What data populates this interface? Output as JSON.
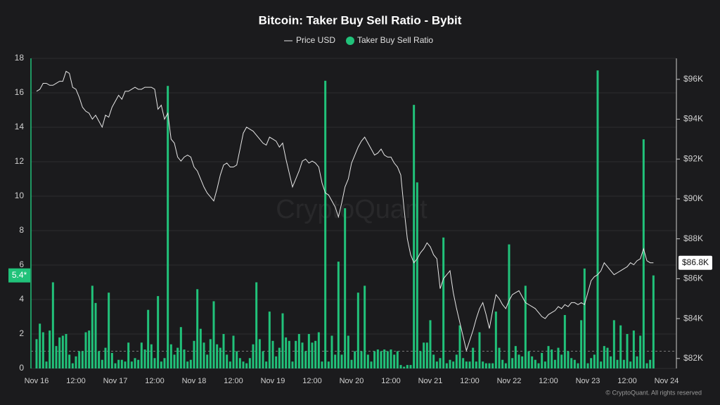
{
  "chart_data": {
    "type": "bar_line",
    "title": "Bitcoin: Taker Buy Sell Ratio - Bybit",
    "watermark": "CryptoQuant",
    "footer": "© CryptoQuant. All rights reserved",
    "legend_position": "top",
    "grid": true,
    "reference_line": 1,
    "ylim": [
      0,
      18
    ],
    "yticks": [
      0,
      2,
      4,
      6,
      8,
      10,
      12,
      14,
      16,
      18
    ],
    "y2lim": [
      81500,
      97050
    ],
    "y2ticks": [
      {
        "value": 82000,
        "label": "$82K"
      },
      {
        "value": 84000,
        "label": "$84K"
      },
      {
        "value": 86000,
        "label": "$86K"
      },
      {
        "value": 88000,
        "label": "$88K"
      },
      {
        "value": 90000,
        "label": "$90K"
      },
      {
        "value": 92000,
        "label": "$92K"
      },
      {
        "value": 94000,
        "label": "$94K"
      },
      {
        "value": 96000,
        "label": "$96K"
      }
    ],
    "categories": [
      "Nov 16",
      null,
      null,
      null,
      null,
      null,
      null,
      null,
      null,
      null,
      null,
      null,
      "12:00",
      null,
      null,
      null,
      null,
      null,
      null,
      null,
      null,
      null,
      null,
      null,
      "Nov 17",
      null,
      null,
      null,
      null,
      null,
      null,
      null,
      null,
      null,
      null,
      null,
      "12:00",
      null,
      null,
      null,
      null,
      null,
      null,
      null,
      null,
      null,
      null,
      null,
      "Nov 18",
      null,
      null,
      null,
      null,
      null,
      null,
      null,
      null,
      null,
      null,
      null,
      "12:00",
      null,
      null,
      null,
      null,
      null,
      null,
      null,
      null,
      null,
      null,
      null,
      "Nov 19",
      null,
      null,
      null,
      null,
      null,
      null,
      null,
      null,
      null,
      null,
      null,
      "12:00",
      null,
      null,
      null,
      null,
      null,
      null,
      null,
      null,
      null,
      null,
      null,
      "Nov 20",
      null,
      null,
      null,
      null,
      null,
      null,
      null,
      null,
      null,
      null,
      null,
      "12:00",
      null,
      null,
      null,
      null,
      null,
      null,
      null,
      null,
      null,
      null,
      null,
      "Nov 21",
      null,
      null,
      null,
      null,
      null,
      null,
      null,
      null,
      null,
      null,
      null,
      "12:00",
      null,
      null,
      null,
      null,
      null,
      null,
      null,
      null,
      null,
      null,
      null,
      "Nov 22",
      null,
      null,
      null,
      null,
      null,
      null,
      null,
      null,
      null,
      null,
      null,
      "12:00",
      null,
      null,
      null,
      null,
      null,
      null,
      null,
      null,
      null,
      null,
      null,
      "Nov 23",
      null,
      null,
      null,
      null,
      null,
      null,
      null,
      null,
      null,
      null,
      null,
      "12:00",
      null,
      null,
      null,
      null,
      null,
      null,
      null,
      null,
      null,
      null,
      null,
      "Nov 24"
    ],
    "series": [
      {
        "name": "Taker Buy Sell Ratio",
        "color": "#21c27a",
        "kind": "bar",
        "axis": "y",
        "values": [
          1.7,
          2.6,
          2.1,
          0.4,
          2.2,
          5.0,
          1.3,
          1.8,
          1.9,
          2.0,
          0.8,
          0.3,
          0.7,
          1.0,
          1.0,
          2.1,
          2.2,
          4.8,
          3.8,
          1.0,
          0.5,
          1.2,
          4.4,
          0.9,
          0.3,
          0.5,
          0.5,
          0.4,
          1.5,
          0.4,
          0.6,
          0.5,
          1.5,
          1.1,
          3.4,
          1.4,
          0.6,
          4.2,
          0.4,
          0.6,
          16.4,
          1.4,
          0.8,
          1.2,
          2.4,
          1.1,
          0.4,
          0.5,
          1.6,
          4.6,
          2.3,
          1.5,
          0.8,
          1.7,
          3.9,
          1.4,
          1.2,
          2.0,
          0.8,
          0.4,
          1.9,
          1.0,
          0.6,
          0.4,
          0.3,
          0.6,
          1.4,
          5.0,
          1.7,
          1.0,
          0.4,
          3.3,
          1.6,
          0.7,
          1.2,
          3.2,
          1.8,
          1.6,
          0.4,
          1.6,
          2.0,
          1.5,
          1.0,
          2.0,
          1.5,
          1.6,
          2.1,
          0.4,
          16.7,
          0.4,
          1.9,
          0.8,
          6.2,
          0.8,
          9.3,
          1.9,
          0.5,
          1.0,
          4.4,
          1.0,
          4.8,
          0.8,
          0.4,
          1.0,
          1.1,
          1.0,
          1.1,
          1.0,
          1.1,
          0.8,
          1.0,
          0.2,
          0.1,
          0.2,
          0.2,
          15.3,
          10.8,
          1.0,
          1.5,
          1.5,
          2.8,
          0.8,
          0.4,
          0.6,
          7.6,
          0.3,
          0.5,
          0.4,
          0.8,
          2.5,
          0.6,
          0.4,
          0.4,
          1.2,
          0.4,
          2.1,
          0.4,
          0.3,
          0.3,
          0.3,
          3.3,
          1.2,
          0.5,
          0.3,
          7.2,
          0.6,
          1.3,
          0.8,
          0.7,
          4.8,
          1.0,
          0.7,
          0.5,
          0.3,
          0.9,
          0.4,
          1.3,
          1.1,
          0.5,
          1.2,
          0.8,
          3.1,
          1.0,
          0.6,
          0.5,
          0.3,
          2.8,
          5.8,
          0.3,
          0.6,
          0.8,
          17.3,
          0.4,
          1.3,
          1.2,
          0.7,
          2.8,
          0.5,
          2.5,
          0.5,
          2.0,
          0.4,
          2.2,
          0.7,
          1.9,
          13.3,
          0.3,
          0.5,
          5.4,
          null,
          null,
          null,
          null
        ]
      },
      {
        "name": "Price USD",
        "color": "#e6e6e6",
        "kind": "line",
        "axis": "y2",
        "values": [
          95400,
          95500,
          95800,
          95800,
          95700,
          95700,
          95800,
          95900,
          95900,
          96400,
          96300,
          95600,
          95500,
          95100,
          94600,
          94400,
          94300,
          94000,
          94200,
          93900,
          93600,
          94200,
          94100,
          94600,
          94900,
          95200,
          95000,
          95400,
          95400,
          95500,
          95600,
          95500,
          95500,
          95600,
          95600,
          95600,
          95500,
          94500,
          94700,
          94000,
          94300,
          93000,
          92800,
          92100,
          91900,
          92100,
          92200,
          92100,
          91600,
          91400,
          91000,
          90600,
          90300,
          90100,
          89900,
          90500,
          91200,
          91700,
          91800,
          91600,
          91600,
          91700,
          92500,
          93300,
          93600,
          93500,
          93400,
          93200,
          93000,
          92800,
          92700,
          93100,
          93000,
          92900,
          92600,
          92800,
          92000,
          91300,
          90600,
          91000,
          91400,
          91900,
          92000,
          91800,
          91900,
          91800,
          91600,
          90800,
          90300,
          90200,
          89900,
          89600,
          89100,
          89800,
          90600,
          91000,
          91800,
          92200,
          92600,
          92900,
          93100,
          92800,
          92500,
          92200,
          92300,
          92500,
          92200,
          92100,
          92100,
          91800,
          91600,
          91200,
          89500,
          88000,
          87200,
          86800,
          87000,
          87300,
          87500,
          87800,
          87600,
          87200,
          87000,
          85500,
          86000,
          86200,
          86400,
          85300,
          84500,
          83800,
          83100,
          82400,
          82900,
          83400,
          84000,
          84500,
          84800,
          84200,
          83500,
          84400,
          85200,
          85000,
          84700,
          84500,
          84900,
          85200,
          85300,
          85400,
          85100,
          84800,
          84700,
          84600,
          84500,
          84300,
          84100,
          84000,
          84200,
          84300,
          84400,
          84600,
          84500,
          84700,
          84600,
          84800,
          84800,
          84700,
          84800,
          84700,
          85300,
          85900,
          86100,
          86200,
          86400,
          86800,
          86600,
          86400,
          86200,
          86300,
          86400,
          86500,
          86600,
          86800,
          86700,
          86900,
          87000,
          87500,
          86900,
          86800,
          86800,
          null,
          null,
          null,
          null
        ]
      }
    ],
    "annotations": [
      {
        "label": "5.4*",
        "value": 5.4,
        "axis": "y"
      },
      {
        "label": "$86.8K",
        "value": 86800,
        "axis": "y2"
      }
    ]
  }
}
